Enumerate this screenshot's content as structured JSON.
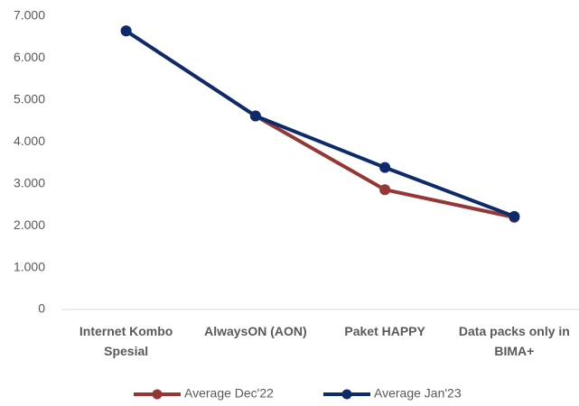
{
  "chart_data": {
    "type": "line",
    "categories": [
      "Internet Kombo Spesial",
      "AlwaysON (AON)",
      "Paket HAPPY",
      "Data packs only in BIMA+"
    ],
    "series": [
      {
        "name": "Average Dec'22",
        "color": "#953735",
        "values": [
          6650,
          4620,
          2860,
          2200
        ]
      },
      {
        "name": "Average Jan'23",
        "color": "#0d2a6b",
        "values": [
          6650,
          4620,
          3390,
          2220
        ]
      }
    ],
    "ylim": [
      0,
      7000
    ],
    "yticks": [
      0,
      {
        "value": 1000,
        "label": "1.000"
      },
      {
        "value": 2000,
        "label": "2.000"
      },
      {
        "value": 3000,
        "label": "3.000"
      },
      {
        "value": 4000,
        "label": "4.000"
      },
      {
        "value": 5000,
        "label": "5.000"
      },
      {
        "value": 6000,
        "label": "6.000"
      },
      {
        "value": 7000,
        "label": "7.000"
      }
    ],
    "legend": "bottom"
  }
}
